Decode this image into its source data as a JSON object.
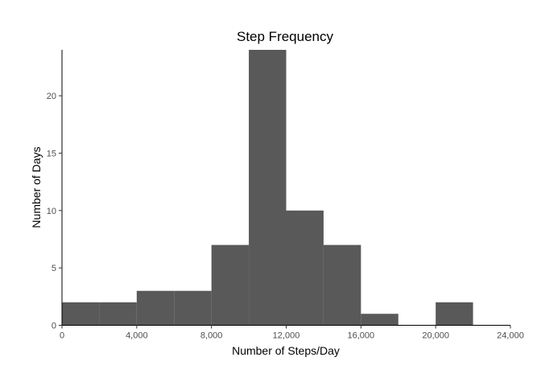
{
  "chart_data": {
    "type": "bar",
    "title": "Step Frequency",
    "xlabel": "Number of Steps/Day",
    "ylabel": "Number of Days",
    "bin_edges": [
      0,
      2000,
      4000,
      6000,
      8000,
      10000,
      12000,
      14000,
      16000,
      18000,
      20000,
      22000
    ],
    "values": [
      2,
      2,
      3,
      3,
      7,
      24,
      10,
      7,
      1,
      0,
      2
    ],
    "xlim": [
      0,
      24000
    ],
    "ylim": [
      0,
      24
    ],
    "xticks": [
      0,
      4000,
      8000,
      12000,
      16000,
      20000,
      24000
    ],
    "xtick_labels": [
      "0",
      "4,000",
      "8,000",
      "12,000",
      "16,000",
      "20,000",
      "24,000"
    ],
    "yticks": [
      0,
      5,
      10,
      15,
      20
    ],
    "ytick_labels": [
      "0",
      "5",
      "10",
      "15",
      "20"
    ],
    "bar_color": "#595959",
    "axis_color": "#000000",
    "grid": false,
    "legend": "none"
  }
}
